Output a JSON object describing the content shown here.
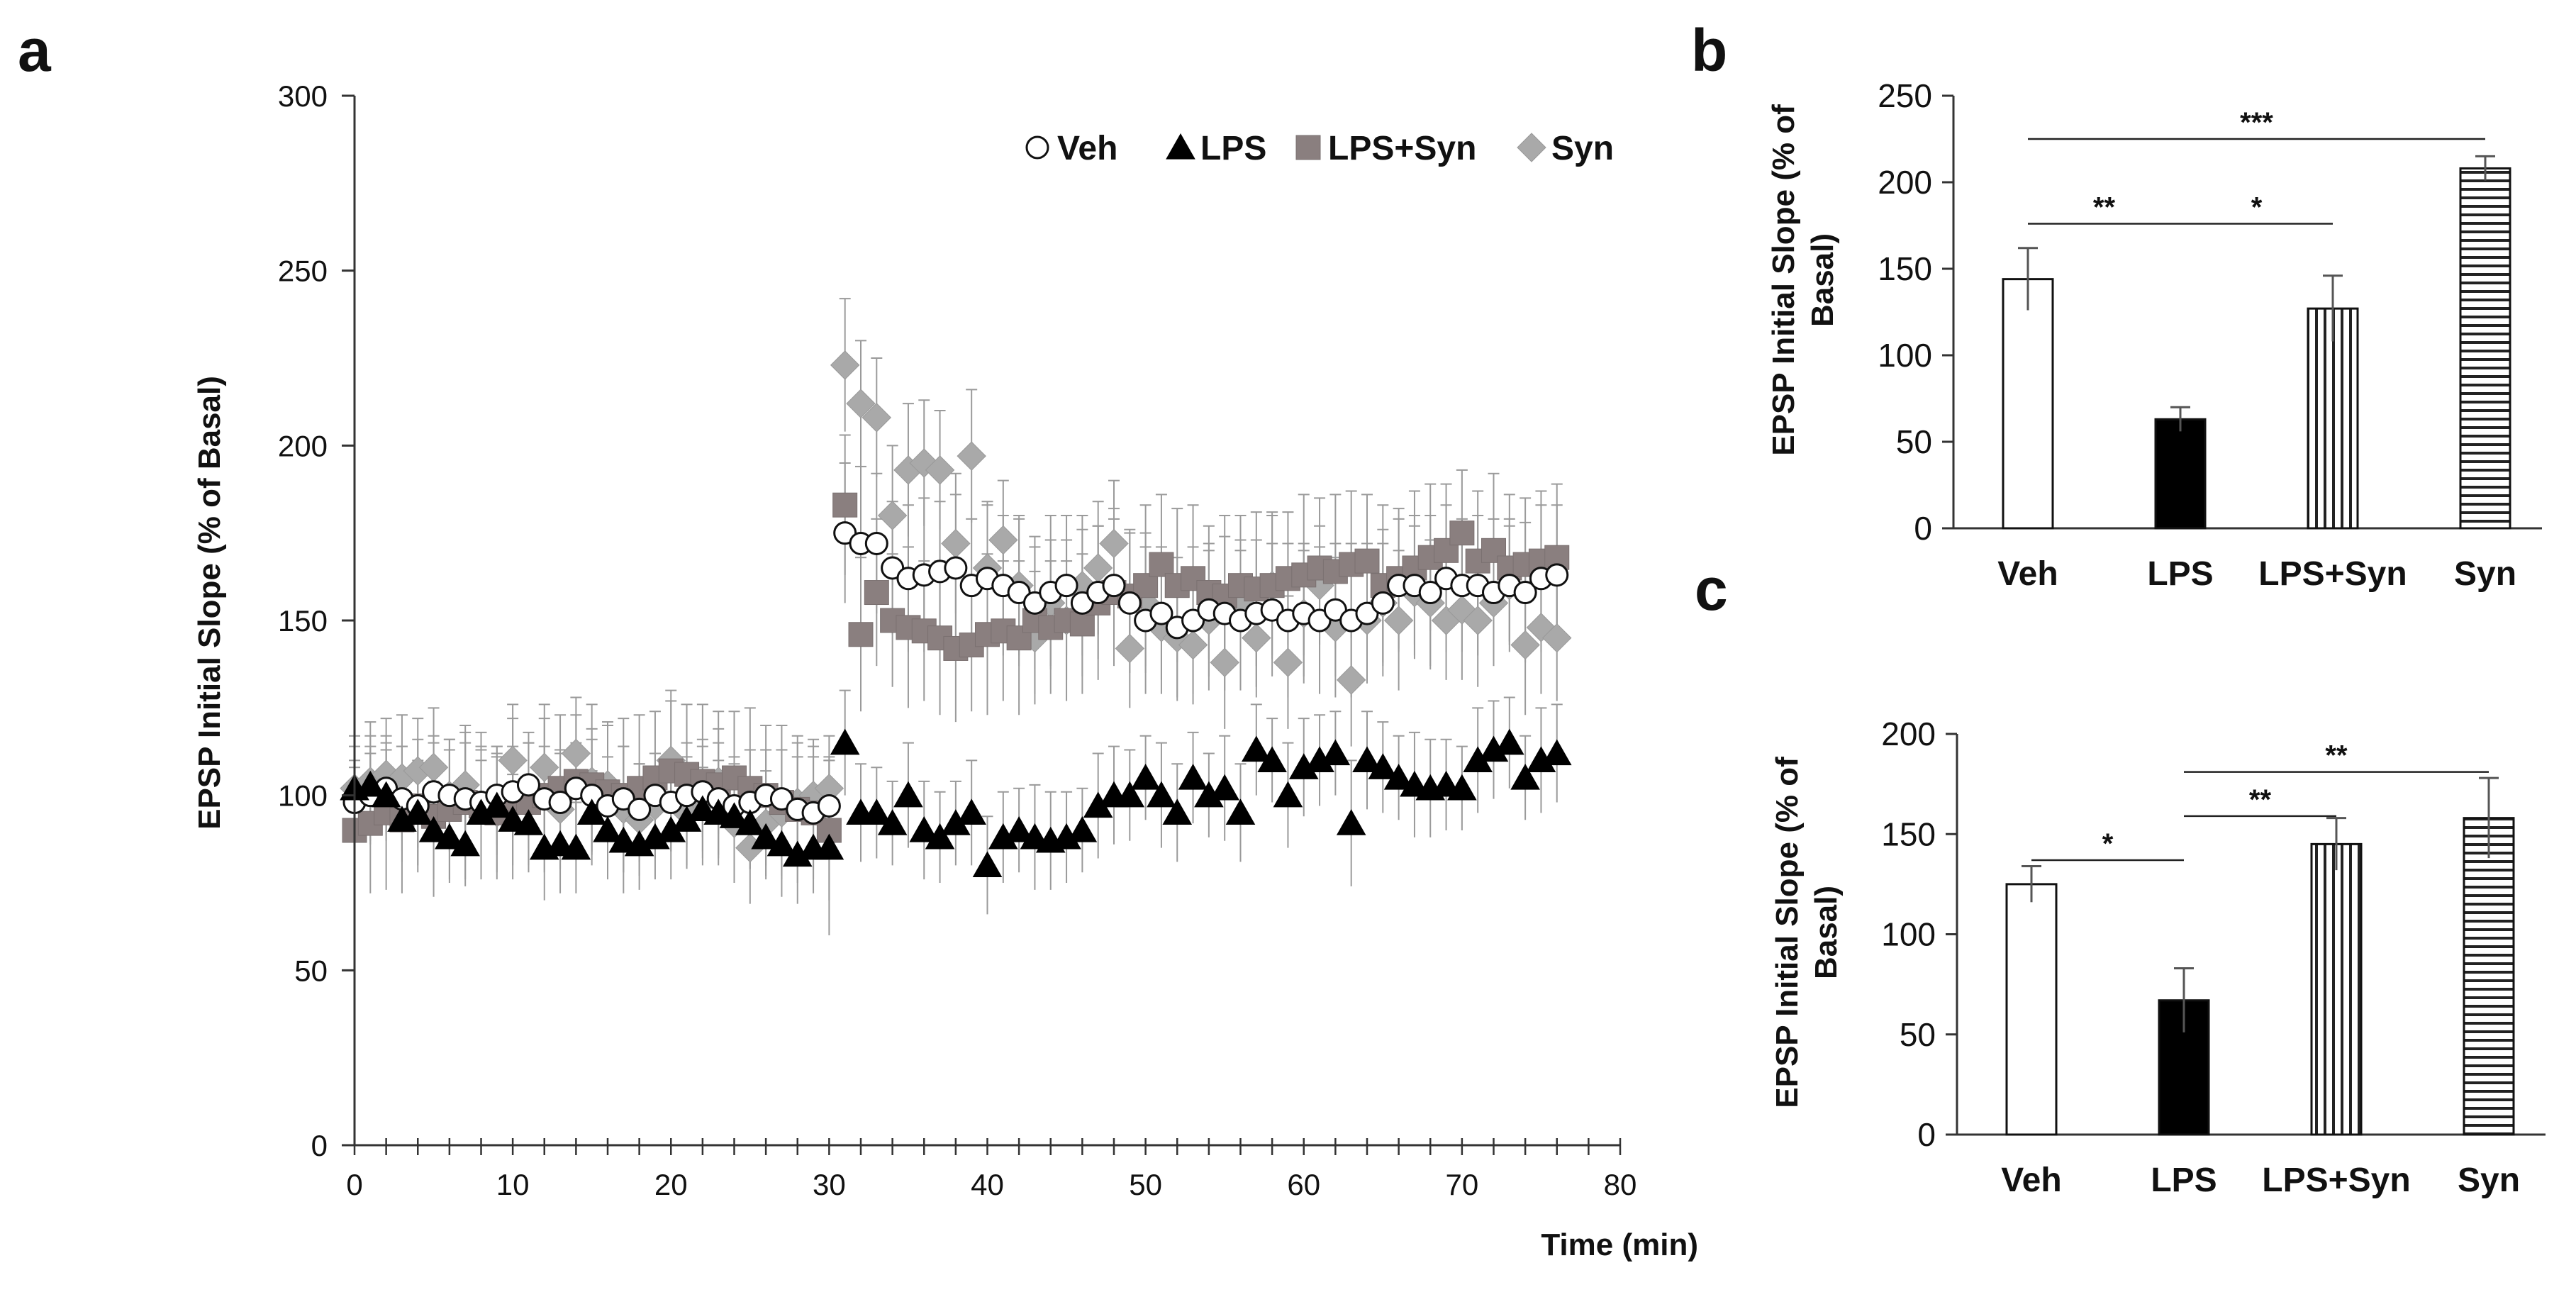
{
  "chart_data": [
    {
      "panel": "a",
      "type": "scatter",
      "ylabel": "EPSP Initial Slope (% of Basal)",
      "xlabel": "Time (min)",
      "xlim": [
        0,
        80
      ],
      "ylim": [
        0,
        300
      ],
      "x_ticks": [
        0,
        10,
        20,
        30,
        40,
        50,
        60,
        70,
        80
      ],
      "y_ticks": [
        0,
        50,
        100,
        150,
        200,
        250,
        300
      ],
      "legend": [
        "Veh",
        "LPS",
        "LPS+Syn",
        "Syn"
      ],
      "series": [
        {
          "name": "Veh",
          "marker": "circle",
          "x": [
            0,
            1,
            2,
            3,
            4,
            5,
            6,
            7,
            8,
            9,
            10,
            11,
            12,
            13,
            14,
            15,
            16,
            17,
            18,
            19,
            20,
            21,
            22,
            23,
            24,
            25,
            26,
            27,
            28,
            29,
            30,
            31,
            32,
            33,
            34,
            35,
            36,
            37,
            38,
            39,
            40,
            41,
            42,
            43,
            44,
            45,
            46,
            47,
            48,
            49,
            50,
            51,
            52,
            53,
            54,
            55,
            56,
            57,
            58,
            59,
            60,
            61,
            62,
            63,
            64,
            65,
            66,
            67,
            68,
            69,
            70,
            71,
            72,
            73,
            74,
            75,
            76
          ],
          "y": [
            98,
            100,
            102,
            99,
            97,
            101,
            100,
            99,
            98,
            100,
            101,
            103,
            99,
            98,
            102,
            100,
            97,
            99,
            96,
            100,
            98,
            100,
            101,
            99,
            97,
            98,
            100,
            99,
            96,
            95,
            97,
            175,
            172,
            172,
            165,
            162,
            163,
            164,
            165,
            160,
            162,
            160,
            158,
            155,
            158,
            160,
            155,
            158,
            160,
            155,
            150,
            152,
            148,
            150,
            153,
            152,
            150,
            152,
            153,
            150,
            152,
            150,
            153,
            150,
            152,
            155,
            160,
            160,
            158,
            162,
            160,
            160,
            158,
            160,
            158,
            162,
            163
          ],
          "err": [
            12,
            14,
            13,
            15,
            12,
            14,
            13,
            16,
            15,
            14,
            13,
            12,
            15,
            14,
            13,
            16,
            14,
            15,
            13,
            12,
            14,
            15,
            13,
            16,
            14,
            15,
            13,
            14,
            15,
            16,
            14,
            20,
            22,
            20,
            19,
            21,
            22,
            20,
            21,
            19,
            22,
            20,
            21,
            19,
            22,
            20,
            21,
            19,
            22,
            20,
            21,
            19,
            20,
            21,
            19,
            22,
            20,
            21,
            19,
            22,
            20,
            21,
            19,
            22,
            20,
            21,
            19,
            20,
            22,
            21,
            19,
            20,
            21,
            19,
            20,
            21,
            20
          ]
        },
        {
          "name": "LPS",
          "marker": "triangle",
          "x": [
            0,
            1,
            2,
            3,
            4,
            5,
            6,
            7,
            8,
            9,
            10,
            11,
            12,
            13,
            14,
            15,
            16,
            17,
            18,
            19,
            20,
            21,
            22,
            23,
            24,
            25,
            26,
            27,
            28,
            29,
            30,
            31,
            32,
            33,
            34,
            35,
            36,
            37,
            38,
            39,
            40,
            41,
            42,
            43,
            44,
            45,
            46,
            47,
            48,
            49,
            50,
            51,
            52,
            53,
            54,
            55,
            56,
            57,
            58,
            59,
            60,
            61,
            62,
            63,
            64,
            65,
            66,
            67,
            68,
            69,
            70,
            71,
            72,
            73,
            74,
            75,
            76
          ],
          "y": [
            102,
            103,
            100,
            93,
            95,
            90,
            88,
            86,
            95,
            97,
            93,
            92,
            85,
            86,
            85,
            95,
            90,
            87,
            86,
            88,
            90,
            93,
            96,
            95,
            94,
            92,
            88,
            86,
            83,
            85,
            85,
            115,
            95,
            95,
            92,
            100,
            90,
            88,
            92,
            95,
            80,
            88,
            90,
            88,
            87,
            88,
            90,
            97,
            100,
            100,
            105,
            100,
            95,
            105,
            100,
            102,
            95,
            113,
            110,
            100,
            108,
            110,
            112,
            92,
            110,
            108,
            105,
            103,
            102,
            103,
            102,
            110,
            113,
            115,
            105,
            110,
            112
          ],
          "err": [
            12,
            14,
            13,
            12,
            15,
            14,
            13,
            12,
            15,
            14,
            13,
            12,
            15,
            14,
            13,
            12,
            14,
            15,
            13,
            12,
            14,
            13,
            12,
            15,
            14,
            13,
            12,
            15,
            14,
            13,
            25,
            15,
            14,
            13,
            12,
            15,
            14,
            13,
            12,
            15,
            14,
            13,
            12,
            15,
            14,
            13,
            12,
            15,
            14,
            13,
            12,
            15,
            14,
            13,
            12,
            15,
            14,
            13,
            12,
            15,
            14,
            13,
            12,
            18,
            14,
            13,
            12,
            15,
            14,
            13,
            12,
            15,
            14,
            13,
            12,
            15,
            14
          ]
        },
        {
          "name": "LPS+Syn",
          "marker": "square",
          "x": [
            0,
            1,
            2,
            3,
            4,
            5,
            6,
            7,
            8,
            9,
            10,
            11,
            12,
            13,
            14,
            15,
            16,
            17,
            18,
            19,
            20,
            21,
            22,
            23,
            24,
            25,
            26,
            27,
            28,
            29,
            30,
            31,
            32,
            33,
            34,
            35,
            36,
            37,
            38,
            39,
            40,
            41,
            42,
            43,
            44,
            45,
            46,
            47,
            48,
            49,
            50,
            51,
            52,
            53,
            54,
            55,
            56,
            57,
            58,
            59,
            60,
            61,
            62,
            63,
            64,
            65,
            66,
            67,
            68,
            69,
            70,
            71,
            72,
            73,
            74,
            75,
            76
          ],
          "y": [
            90,
            92,
            95,
            93,
            97,
            94,
            96,
            98,
            97,
            95,
            99,
            98,
            100,
            102,
            104,
            103,
            101,
            100,
            102,
            105,
            107,
            106,
            104,
            103,
            105,
            102,
            100,
            98,
            96,
            95,
            90,
            183,
            146,
            158,
            150,
            148,
            147,
            145,
            142,
            143,
            146,
            147,
            145,
            150,
            148,
            150,
            149,
            155,
            158,
            157,
            160,
            166,
            160,
            162,
            158,
            157,
            160,
            159,
            160,
            162,
            163,
            165,
            164,
            166,
            167,
            160,
            162,
            165,
            168,
            170,
            175,
            167,
            170,
            165,
            166,
            167,
            168
          ],
          "err": [
            18,
            20,
            22,
            21,
            19,
            23,
            20,
            22,
            21,
            19,
            23,
            20,
            22,
            21,
            19,
            23,
            20,
            22,
            21,
            19,
            23,
            20,
            22,
            21,
            19,
            23,
            20,
            22,
            21,
            19,
            20,
            20,
            22,
            21,
            19,
            23,
            20,
            22,
            21,
            19,
            23,
            20,
            22,
            21,
            19,
            23,
            20,
            22,
            21,
            19,
            23,
            20,
            22,
            21,
            19,
            23,
            20,
            22,
            21,
            19,
            23,
            20,
            22,
            21,
            19,
            23,
            20,
            22,
            21,
            19,
            18,
            20,
            22,
            21,
            19,
            20,
            21
          ]
        },
        {
          "name": "Syn",
          "marker": "diamond",
          "x": [
            0,
            1,
            2,
            3,
            4,
            5,
            6,
            7,
            8,
            9,
            10,
            11,
            12,
            13,
            14,
            15,
            16,
            17,
            18,
            19,
            20,
            21,
            22,
            23,
            24,
            25,
            26,
            27,
            28,
            29,
            30,
            31,
            32,
            33,
            34,
            35,
            36,
            37,
            38,
            39,
            40,
            41,
            42,
            43,
            44,
            45,
            46,
            47,
            48,
            49,
            50,
            51,
            52,
            53,
            54,
            55,
            56,
            57,
            58,
            59,
            60,
            61,
            62,
            63,
            64,
            65,
            66,
            67,
            68,
            69,
            70,
            71,
            72,
            73,
            74,
            75,
            76
          ],
          "y": [
            102,
            104,
            106,
            105,
            107,
            108,
            100,
            103,
            96,
            95,
            110,
            100,
            108,
            96,
            112,
            104,
            103,
            96,
            93,
            97,
            110,
            95,
            98,
            104,
            92,
            85,
            92,
            95,
            98,
            100,
            102,
            223,
            212,
            208,
            180,
            193,
            195,
            193,
            172,
            197,
            165,
            173,
            160,
            145,
            155,
            150,
            160,
            165,
            172,
            142,
            155,
            148,
            145,
            143,
            150,
            138,
            155,
            145,
            160,
            138,
            152,
            160,
            148,
            133,
            150,
            155,
            150,
            158,
            155,
            150,
            153,
            150,
            155,
            160,
            143,
            148,
            145
          ],
          "err": [
            15,
            17,
            16,
            18,
            15,
            17,
            16,
            15,
            18,
            17,
            16,
            15,
            18,
            17,
            16,
            15,
            17,
            18,
            16,
            15,
            17,
            16,
            18,
            15,
            17,
            16,
            15,
            18,
            17,
            16,
            15,
            19,
            18,
            17,
            20,
            19,
            18,
            17,
            20,
            19,
            18,
            17,
            20,
            19,
            18,
            17,
            20,
            19,
            18,
            17,
            20,
            19,
            18,
            17,
            20,
            19,
            18,
            17,
            20,
            19,
            18,
            17,
            20,
            19,
            18,
            17,
            20,
            19,
            18,
            17,
            20,
            19,
            18,
            17,
            20,
            19,
            18
          ]
        }
      ]
    },
    {
      "panel": "b",
      "type": "bar",
      "ylabel": "EPSP Initial Slope (% of Basal)",
      "categories": [
        "Veh",
        "LPS",
        "LPS+Syn",
        "Syn"
      ],
      "values": [
        144,
        63,
        127,
        208
      ],
      "errors": [
        18,
        7,
        19,
        7
      ],
      "patterns": [
        "white",
        "black",
        "vertical",
        "horizontal"
      ],
      "ylim": [
        0,
        250
      ],
      "y_ticks": [
        0,
        50,
        100,
        150,
        200,
        250
      ],
      "significance": [
        {
          "from": 0,
          "to": 1,
          "label": "**",
          "y": 176
        },
        {
          "from": 1,
          "to": 2,
          "label": "*",
          "y": 176
        },
        {
          "from": 0,
          "to": 3,
          "label": "***",
          "y": 225
        }
      ]
    },
    {
      "panel": "c",
      "type": "bar",
      "ylabel": "EPSP Initial Slope (% of Basal)",
      "categories": [
        "Veh",
        "LPS",
        "LPS+Syn",
        "Syn"
      ],
      "values": [
        125,
        67,
        145,
        158
      ],
      "errors": [
        9,
        16,
        13,
        20
      ],
      "patterns": [
        "white",
        "black",
        "vertical",
        "horizontal"
      ],
      "ylim": [
        0,
        200
      ],
      "y_ticks": [
        0,
        50,
        100,
        150,
        200
      ],
      "significance": [
        {
          "from": 0,
          "to": 1,
          "label": "*",
          "y": 137
        },
        {
          "from": 1,
          "to": 2,
          "label": "**",
          "y": 159
        },
        {
          "from": 1,
          "to": 3,
          "label": "**",
          "y": 181
        }
      ]
    }
  ]
}
